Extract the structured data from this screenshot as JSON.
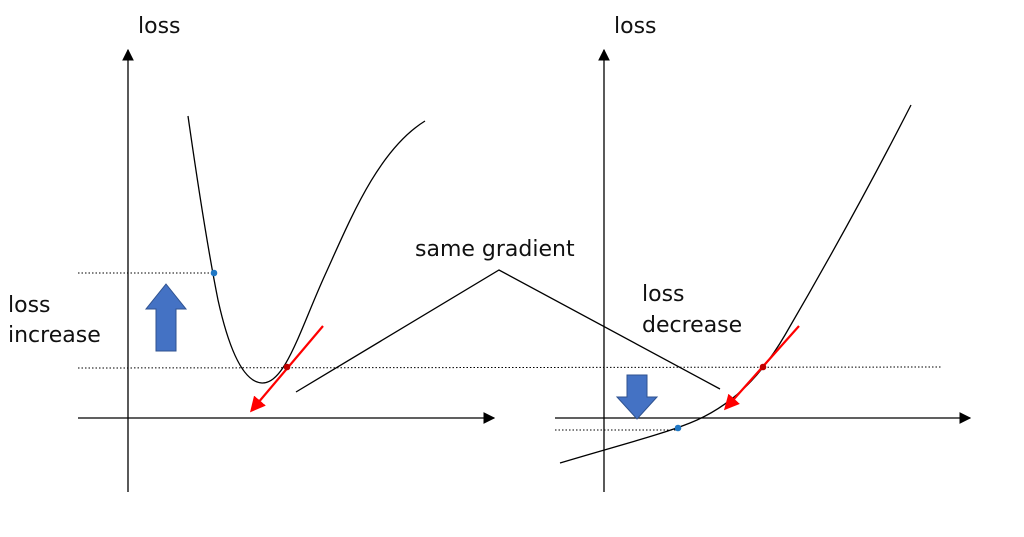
{
  "labels": {
    "left_y_axis": "loss",
    "right_y_axis": "loss",
    "loss_increase_line1": "loss",
    "loss_increase_line2": "increase",
    "loss_decrease_line1": "loss",
    "loss_decrease_line2": "decrease",
    "callout": "same gradient"
  },
  "colors": {
    "curve": "#000000",
    "tangent": "#ff0000",
    "point_blue": "#1f77c4",
    "arrow_fill": "#4472c4",
    "arrow_stroke": "#2f528f"
  }
}
